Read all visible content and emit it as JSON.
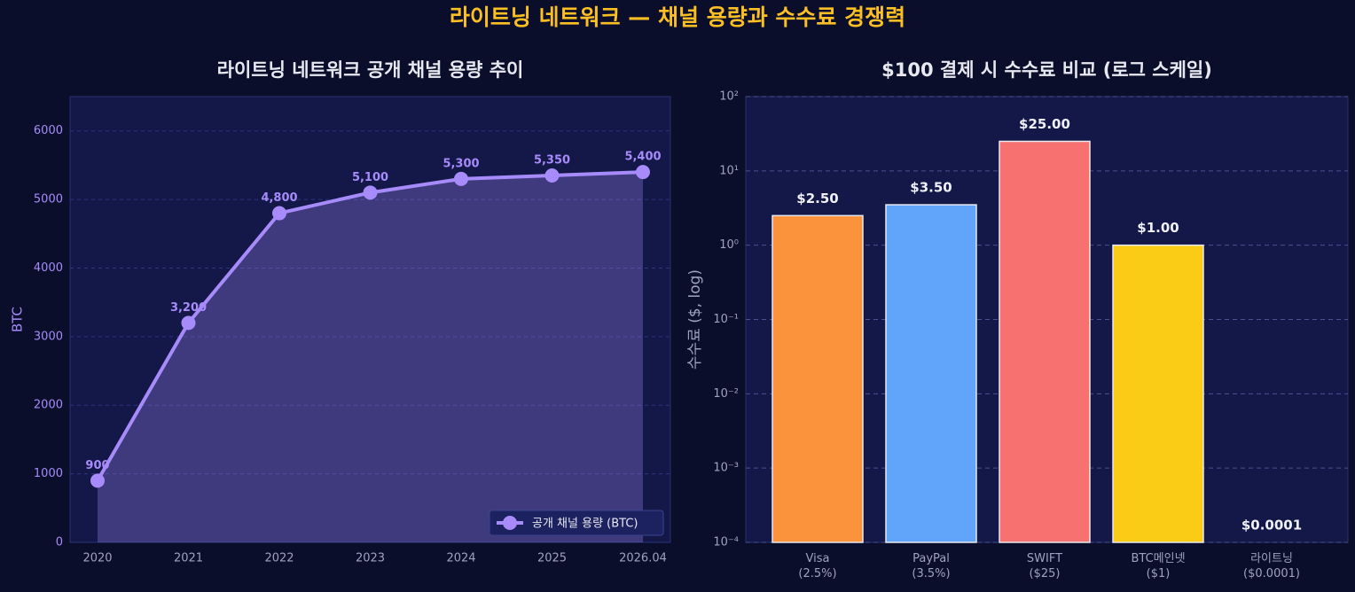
{
  "title": "라이트닝 네트워크 — 채널 용량과 수수료 경쟁력",
  "chart_data": [
    {
      "type": "line",
      "title": "라이트닝 네트워크 공개 채널 용량 추이",
      "y_label": "BTC",
      "categories": [
        "2020",
        "2021",
        "2022",
        "2023",
        "2024",
        "2025",
        "2026.04"
      ],
      "series": [
        {
          "name": "공개 채널 용량 (BTC)",
          "color": "#a78bfa",
          "values": [
            900,
            3200,
            4800,
            5100,
            5300,
            5350,
            5400
          ],
          "value_labels": [
            "900",
            "3,200",
            "4,800",
            "5,100",
            "5,300",
            "5,350",
            "5,400"
          ]
        }
      ],
      "ylim": [
        0,
        6500
      ],
      "yticks": [
        0,
        1000,
        2000,
        3000,
        4000,
        5000,
        6000
      ],
      "grid": true,
      "fill_area": true,
      "legend": "lower right"
    },
    {
      "type": "bar",
      "title": "$100 결제 시 수수료 비교 (로그 스케일)",
      "y_label": "수수료 ($, log)",
      "categories": [
        "Visa\n(2.5%)",
        "PayPal\n(3.5%)",
        "SWIFT\n($25)",
        "BTC메인넷\n($1)",
        "라이트닝\n($0.0001)"
      ],
      "values": [
        2.5,
        3.5,
        25,
        1,
        0.0001
      ],
      "value_labels": [
        "$2.50",
        "$3.50",
        "$25.00",
        "$1.00",
        "$0.0001"
      ],
      "colors": [
        "#fb923c",
        "#60a5fa",
        "#f87171",
        "#facc15",
        "#a78bfa"
      ],
      "yscale": "log",
      "ylim": [
        0.0001,
        100
      ],
      "yticks": [
        {
          "value": 0.0001,
          "label": "10⁻⁴"
        },
        {
          "value": 0.001,
          "label": "10⁻³"
        },
        {
          "value": 0.01,
          "label": "10⁻²"
        },
        {
          "value": 0.1,
          "label": "10⁻¹"
        },
        {
          "value": 1,
          "label": "10⁰"
        },
        {
          "value": 10,
          "label": "10¹"
        },
        {
          "value": 100,
          "label": "10²"
        }
      ],
      "grid": true
    }
  ]
}
